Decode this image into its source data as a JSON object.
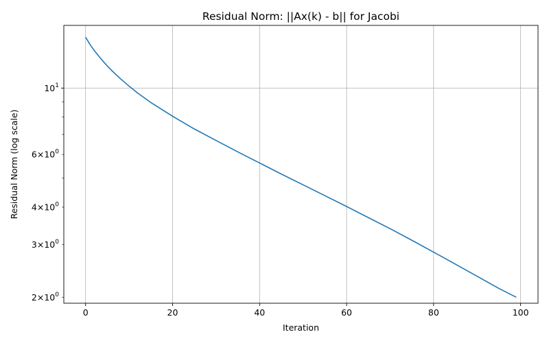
{
  "chart_data": {
    "type": "line",
    "title": "Residual Norm: ||Ax(k) - b|| for Jacobi",
    "xlabel": "Iteration",
    "ylabel": "Residual Norm (log scale)",
    "xlim": [
      -5,
      104
    ],
    "ylim": [
      1.91,
      16.2
    ],
    "yscale": "log",
    "grid": true,
    "x_ticks": [
      {
        "value": 0,
        "label": "0"
      },
      {
        "value": 20,
        "label": "20"
      },
      {
        "value": 40,
        "label": "40"
      },
      {
        "value": 60,
        "label": "60"
      },
      {
        "value": 80,
        "label": "80"
      },
      {
        "value": 100,
        "label": "100"
      }
    ],
    "y_major_ticks": [
      {
        "value": 10,
        "base": "10",
        "exp": "1"
      }
    ],
    "y_labeled_minor_ticks": [
      {
        "value": 2,
        "coef": "2",
        "base": "10",
        "exp": "0"
      },
      {
        "value": 3,
        "coef": "3",
        "base": "10",
        "exp": "0"
      },
      {
        "value": 4,
        "coef": "4",
        "base": "10",
        "exp": "0"
      },
      {
        "value": 6,
        "coef": "6",
        "base": "10",
        "exp": "0"
      }
    ],
    "y_unlabeled_minor_ticks": [
      5,
      7,
      8,
      9
    ],
    "series": [
      {
        "color": "#1f77b4",
        "x": [
          0,
          1,
          2,
          3,
          4,
          5,
          6,
          8,
          10,
          12,
          15,
          20,
          25,
          30,
          35,
          40,
          45,
          50,
          55,
          60,
          65,
          70,
          75,
          80,
          85,
          90,
          95,
          99
        ],
        "y": [
          14.8,
          14.0,
          13.35,
          12.8,
          12.3,
          11.85,
          11.45,
          10.75,
          10.15,
          9.62,
          8.95,
          8.05,
          7.3,
          6.68,
          6.12,
          5.62,
          5.16,
          4.75,
          4.37,
          4.02,
          3.69,
          3.39,
          3.1,
          2.83,
          2.58,
          2.35,
          2.14,
          2.0
        ]
      }
    ]
  }
}
